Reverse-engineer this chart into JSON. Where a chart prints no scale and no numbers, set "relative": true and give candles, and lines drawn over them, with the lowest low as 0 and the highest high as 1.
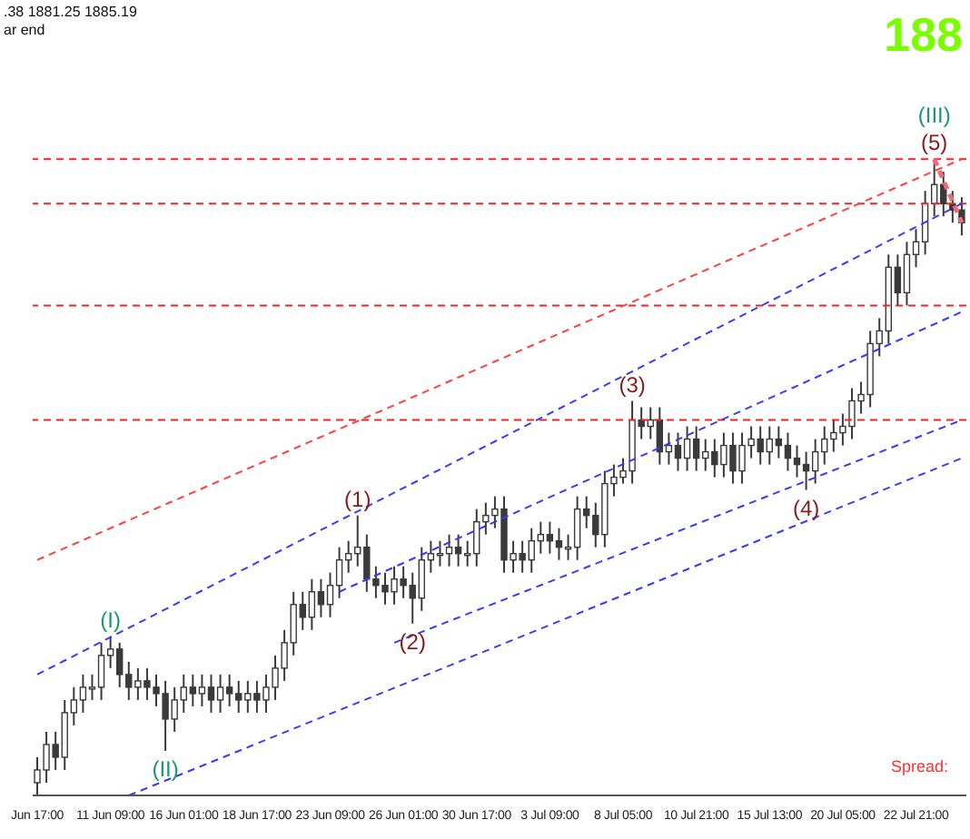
{
  "chart_data": {
    "type": "candlestick",
    "relative": true,
    "color": "#3a3a3a",
    "categories": [
      "Jun 17:00",
      null,
      null,
      null,
      null,
      null,
      null,
      null,
      "11 Jun 09:00",
      null,
      null,
      null,
      null,
      null,
      null,
      null,
      "16 Jun 01:00",
      null,
      null,
      null,
      null,
      null,
      null,
      null,
      "18 Jun 17:00",
      null,
      null,
      null,
      null,
      null,
      null,
      null,
      "23 Jun 09:00",
      null,
      null,
      null,
      null,
      null,
      null,
      null,
      "26 Jun 01:00",
      null,
      null,
      null,
      null,
      null,
      null,
      null,
      "30 Jun 17:00",
      null,
      null,
      null,
      null,
      null,
      null,
      null,
      "3 Jul 09:00",
      null,
      null,
      null,
      null,
      null,
      null,
      null,
      "8 Jul 05:00",
      null,
      null,
      null,
      null,
      null,
      null,
      null,
      "10 Jul 21:00",
      null,
      null,
      null,
      null,
      null,
      null,
      null,
      "15 Jul 13:00",
      null,
      null,
      null,
      null,
      null,
      null,
      null,
      "20 Jul 05:00",
      null,
      null,
      null,
      null,
      null,
      null,
      null,
      "22 Jul 21:00",
      null,
      null,
      null,
      null,
      null
    ],
    "ohlc": [
      [
        0.02,
        0.06,
        0,
        0.04
      ],
      [
        0.04,
        0.1,
        0.02,
        0.08
      ],
      [
        0.08,
        0.1,
        0.04,
        0.06
      ],
      [
        0.06,
        0.15,
        0.04,
        0.13
      ],
      [
        0.13,
        0.17,
        0.11,
        0.15
      ],
      [
        0.15,
        0.19,
        0.13,
        0.17
      ],
      [
        0.17,
        0.19,
        0.15,
        0.17
      ],
      [
        0.17,
        0.24,
        0.15,
        0.22
      ],
      [
        0.22,
        0.25,
        0.2,
        0.23
      ],
      [
        0.23,
        0.24,
        0.17,
        0.19
      ],
      [
        0.19,
        0.21,
        0.15,
        0.17
      ],
      [
        0.17,
        0.2,
        0.15,
        0.18
      ],
      [
        0.18,
        0.2,
        0.15,
        0.17
      ],
      [
        0.17,
        0.19,
        0.14,
        0.16
      ],
      [
        0.16,
        0.18,
        0.07,
        0.12
      ],
      [
        0.12,
        0.17,
        0.1,
        0.15
      ],
      [
        0.15,
        0.19,
        0.13,
        0.17
      ],
      [
        0.17,
        0.19,
        0.14,
        0.16
      ],
      [
        0.16,
        0.19,
        0.14,
        0.17
      ],
      [
        0.17,
        0.19,
        0.13,
        0.15
      ],
      [
        0.15,
        0.19,
        0.13,
        0.17
      ],
      [
        0.17,
        0.19,
        0.14,
        0.16
      ],
      [
        0.16,
        0.18,
        0.13,
        0.15
      ],
      [
        0.15,
        0.18,
        0.13,
        0.16
      ],
      [
        0.16,
        0.18,
        0.13,
        0.15
      ],
      [
        0.15,
        0.19,
        0.13,
        0.17
      ],
      [
        0.17,
        0.22,
        0.15,
        0.2
      ],
      [
        0.2,
        0.26,
        0.18,
        0.24
      ],
      [
        0.24,
        0.32,
        0.22,
        0.3
      ],
      [
        0.3,
        0.32,
        0.26,
        0.28
      ],
      [
        0.28,
        0.34,
        0.26,
        0.32
      ],
      [
        0.32,
        0.34,
        0.28,
        0.3
      ],
      [
        0.3,
        0.35,
        0.28,
        0.33
      ],
      [
        0.33,
        0.39,
        0.31,
        0.37
      ],
      [
        0.37,
        0.4,
        0.35,
        0.38
      ],
      [
        0.38,
        0.44,
        0.36,
        0.39
      ],
      [
        0.39,
        0.41,
        0.32,
        0.34
      ],
      [
        0.34,
        0.36,
        0.31,
        0.33
      ],
      [
        0.33,
        0.35,
        0.3,
        0.32
      ],
      [
        0.32,
        0.36,
        0.3,
        0.34
      ],
      [
        0.34,
        0.36,
        0.31,
        0.33
      ],
      [
        0.33,
        0.35,
        0.27,
        0.31
      ],
      [
        0.31,
        0.39,
        0.29,
        0.37
      ],
      [
        0.37,
        0.4,
        0.35,
        0.38
      ],
      [
        0.38,
        0.4,
        0.36,
        0.38
      ],
      [
        0.38,
        0.41,
        0.36,
        0.39
      ],
      [
        0.39,
        0.41,
        0.36,
        0.38
      ],
      [
        0.38,
        0.4,
        0.36,
        0.38
      ],
      [
        0.38,
        0.45,
        0.36,
        0.43
      ],
      [
        0.43,
        0.46,
        0.41,
        0.44
      ],
      [
        0.44,
        0.47,
        0.42,
        0.45
      ],
      [
        0.45,
        0.47,
        0.35,
        0.37
      ],
      [
        0.37,
        0.4,
        0.35,
        0.38
      ],
      [
        0.38,
        0.4,
        0.35,
        0.37
      ],
      [
        0.37,
        0.42,
        0.35,
        0.4
      ],
      [
        0.4,
        0.43,
        0.38,
        0.41
      ],
      [
        0.41,
        0.43,
        0.38,
        0.4
      ],
      [
        0.4,
        0.42,
        0.37,
        0.39
      ],
      [
        0.39,
        0.41,
        0.37,
        0.39
      ],
      [
        0.39,
        0.47,
        0.37,
        0.45
      ],
      [
        0.45,
        0.47,
        0.42,
        0.44
      ],
      [
        0.44,
        0.46,
        0.39,
        0.41
      ],
      [
        0.41,
        0.51,
        0.39,
        0.49
      ],
      [
        0.49,
        0.52,
        0.47,
        0.5
      ],
      [
        0.5,
        0.53,
        0.49,
        0.51
      ],
      [
        0.51,
        0.62,
        0.49,
        0.59
      ],
      [
        0.59,
        0.61,
        0.56,
        0.58
      ],
      [
        0.58,
        0.61,
        0.56,
        0.59
      ],
      [
        0.59,
        0.61,
        0.52,
        0.54
      ],
      [
        0.54,
        0.57,
        0.52,
        0.55
      ],
      [
        0.55,
        0.57,
        0.51,
        0.53
      ],
      [
        0.53,
        0.58,
        0.51,
        0.56
      ],
      [
        0.56,
        0.58,
        0.51,
        0.53
      ],
      [
        0.53,
        0.56,
        0.51,
        0.54
      ],
      [
        0.54,
        0.56,
        0.5,
        0.52
      ],
      [
        0.52,
        0.57,
        0.5,
        0.55
      ],
      [
        0.55,
        0.57,
        0.49,
        0.51
      ],
      [
        0.51,
        0.57,
        0.49,
        0.55
      ],
      [
        0.55,
        0.58,
        0.53,
        0.56
      ],
      [
        0.56,
        0.58,
        0.52,
        0.54
      ],
      [
        0.54,
        0.58,
        0.52,
        0.56
      ],
      [
        0.56,
        0.58,
        0.53,
        0.55
      ],
      [
        0.55,
        0.57,
        0.51,
        0.53
      ],
      [
        0.53,
        0.55,
        0.5,
        0.52
      ],
      [
        0.52,
        0.54,
        0.48,
        0.51
      ],
      [
        0.51,
        0.56,
        0.49,
        0.54
      ],
      [
        0.54,
        0.58,
        0.52,
        0.56
      ],
      [
        0.56,
        0.59,
        0.54,
        0.57
      ],
      [
        0.57,
        0.6,
        0.55,
        0.58
      ],
      [
        0.58,
        0.64,
        0.56,
        0.62
      ],
      [
        0.62,
        0.65,
        0.6,
        0.63
      ],
      [
        0.63,
        0.73,
        0.61,
        0.71
      ],
      [
        0.71,
        0.75,
        0.69,
        0.73
      ],
      [
        0.73,
        0.85,
        0.71,
        0.83
      ],
      [
        0.83,
        0.85,
        0.77,
        0.79
      ],
      [
        0.79,
        0.87,
        0.77,
        0.85
      ],
      [
        0.85,
        0.89,
        0.83,
        0.87
      ],
      [
        0.87,
        0.95,
        0.85,
        0.93
      ],
      [
        0.93,
        1.0,
        0.91,
        0.96
      ],
      [
        0.96,
        0.98,
        0.91,
        0.93
      ],
      [
        0.93,
        0.95,
        0.9,
        0.92
      ],
      [
        0.92,
        0.94,
        0.88,
        0.9
      ]
    ],
    "series": [
      {
        "type": "line",
        "color": "#ff4040",
        "line_style": "dashed",
        "values": [
          0.37,
          null,
          null,
          null,
          null,
          null,
          null,
          null,
          null,
          null,
          null,
          null,
          null,
          null,
          null,
          null,
          null,
          null,
          null,
          null,
          null,
          null,
          null,
          null,
          null,
          null,
          null,
          null,
          null,
          null,
          null,
          null,
          null,
          null,
          null,
          null,
          null,
          null,
          null,
          null,
          null,
          null,
          null,
          null,
          null,
          null,
          null,
          null,
          null,
          null,
          null,
          null,
          null,
          null,
          null,
          null,
          null,
          null,
          null,
          null,
          null,
          null,
          null,
          null,
          null,
          null,
          null,
          null,
          null,
          null,
          null,
          null,
          null,
          null,
          null,
          null,
          null,
          null,
          null,
          null,
          null,
          null,
          null,
          null,
          null,
          null,
          null,
          null,
          null,
          null,
          null,
          null,
          null,
          null,
          null,
          null,
          null,
          null,
          null,
          null,
          null,
          1.0
        ]
      },
      {
        "type": "line",
        "color": "#3a3aff",
        "line_style": "dashed",
        "values": [
          0.19,
          null,
          null,
          null,
          null,
          null,
          null,
          null,
          null,
          null,
          null,
          null,
          null,
          null,
          null,
          null,
          null,
          null,
          null,
          null,
          null,
          null,
          null,
          null,
          null,
          null,
          null,
          null,
          null,
          null,
          null,
          null,
          null,
          null,
          null,
          null,
          null,
          null,
          null,
          null,
          null,
          null,
          null,
          null,
          null,
          null,
          null,
          null,
          null,
          null,
          null,
          null,
          null,
          null,
          null,
          null,
          null,
          null,
          null,
          null,
          null,
          null,
          null,
          null,
          null,
          null,
          null,
          null,
          null,
          null,
          null,
          null,
          null,
          null,
          null,
          null,
          null,
          null,
          null,
          null,
          null,
          null,
          null,
          null,
          null,
          null,
          null,
          null,
          null,
          null,
          null,
          null,
          null,
          null,
          null,
          null,
          null,
          null,
          null,
          null,
          null,
          0.93
        ]
      },
      {
        "type": "line",
        "color": "#3a3aff",
        "line_style": "dashed",
        "values": [
          null,
          null,
          null,
          null,
          null,
          null,
          null,
          null,
          null,
          null,
          null,
          null,
          null,
          null,
          null,
          null,
          null,
          null,
          null,
          null,
          null,
          null,
          null,
          null,
          null,
          null,
          null,
          null,
          null,
          null,
          null,
          null,
          null,
          0.32,
          null,
          null,
          null,
          null,
          null,
          null,
          null,
          null,
          null,
          null,
          null,
          null,
          null,
          null,
          null,
          null,
          null,
          null,
          null,
          null,
          null,
          null,
          null,
          null,
          null,
          null,
          null,
          null,
          null,
          null,
          null,
          null,
          null,
          null,
          null,
          null,
          null,
          null,
          null,
          null,
          null,
          null,
          null,
          null,
          null,
          null,
          null,
          null,
          null,
          null,
          null,
          null,
          null,
          null,
          null,
          null,
          null,
          null,
          null,
          null,
          null,
          null,
          null,
          null,
          null,
          null,
          null,
          0.76
        ]
      },
      {
        "type": "line",
        "color": "#3a3aff",
        "line_style": "dashed",
        "values": [
          null,
          null,
          null,
          null,
          null,
          null,
          null,
          null,
          null,
          null,
          null,
          null,
          null,
          null,
          null,
          null,
          null,
          null,
          null,
          null,
          null,
          null,
          null,
          null,
          null,
          null,
          null,
          null,
          null,
          null,
          null,
          null,
          null,
          null,
          null,
          null,
          null,
          null,
          null,
          0.24,
          null,
          null,
          null,
          null,
          null,
          null,
          null,
          null,
          null,
          null,
          null,
          null,
          null,
          null,
          null,
          null,
          null,
          null,
          null,
          null,
          null,
          null,
          null,
          null,
          null,
          null,
          null,
          null,
          null,
          null,
          null,
          null,
          null,
          null,
          null,
          null,
          null,
          null,
          null,
          null,
          null,
          null,
          null,
          null,
          null,
          null,
          null,
          null,
          null,
          null,
          null,
          null,
          null,
          null,
          null,
          null,
          null,
          null,
          null,
          null,
          null,
          0.59
        ]
      },
      {
        "type": "line",
        "color": "#3a3aff",
        "line_style": "dashed",
        "values": [
          null,
          null,
          null,
          null,
          null,
          null,
          null,
          null,
          null,
          null,
          0.0,
          null,
          null,
          null,
          null,
          null,
          null,
          null,
          null,
          null,
          null,
          null,
          null,
          null,
          null,
          null,
          null,
          null,
          null,
          null,
          null,
          null,
          null,
          null,
          null,
          null,
          null,
          null,
          null,
          null,
          null,
          null,
          null,
          null,
          null,
          null,
          null,
          null,
          null,
          null,
          null,
          null,
          null,
          null,
          null,
          null,
          null,
          null,
          null,
          null,
          null,
          null,
          null,
          null,
          null,
          null,
          null,
          null,
          null,
          null,
          null,
          null,
          null,
          null,
          null,
          null,
          null,
          null,
          null,
          null,
          null,
          null,
          null,
          null,
          null,
          null,
          null,
          null,
          null,
          null,
          null,
          null,
          null,
          null,
          null,
          null,
          null,
          null,
          null,
          null,
          null,
          0.53
        ]
      },
      {
        "type": "line",
        "color": "#f06a7a",
        "line_style": "dashed",
        "values": [
          null,
          null,
          null,
          null,
          null,
          null,
          null,
          null,
          null,
          null,
          null,
          null,
          null,
          null,
          null,
          null,
          null,
          null,
          null,
          null,
          null,
          null,
          null,
          null,
          null,
          null,
          null,
          null,
          null,
          null,
          null,
          null,
          null,
          null,
          null,
          null,
          null,
          null,
          null,
          null,
          null,
          null,
          null,
          null,
          null,
          null,
          null,
          null,
          null,
          null,
          null,
          null,
          null,
          null,
          null,
          null,
          null,
          null,
          null,
          null,
          null,
          null,
          null,
          null,
          null,
          null,
          null,
          null,
          null,
          null,
          null,
          null,
          null,
          null,
          null,
          null,
          null,
          null,
          null,
          null,
          null,
          null,
          null,
          null,
          null,
          null,
          null,
          null,
          null,
          null,
          null,
          null,
          null,
          null,
          null,
          null,
          null,
          null,
          1.0,
          null,
          null,
          0.9
        ]
      }
    ],
    "ref_lines": [
      {
        "axis": "y",
        "value": 1.0,
        "color": "#ff2020",
        "line_style": "dashed"
      },
      {
        "axis": "y",
        "value": 0.93,
        "color": "#ff2020",
        "line_style": "dashed"
      },
      {
        "axis": "y",
        "value": 0.77,
        "color": "#ff2020",
        "line_style": "dashed"
      },
      {
        "axis": "y",
        "value": 0.59,
        "color": "#ff2020",
        "line_style": "dashed"
      }
    ],
    "annotations": [
      ".38 1881.25 1885.19",
      "ar end",
      "188",
      "Spread:",
      "(I)",
      "(II)",
      "(1)",
      "(2)",
      "(3)",
      "(4)",
      "(5)",
      "(III)"
    ]
  }
}
